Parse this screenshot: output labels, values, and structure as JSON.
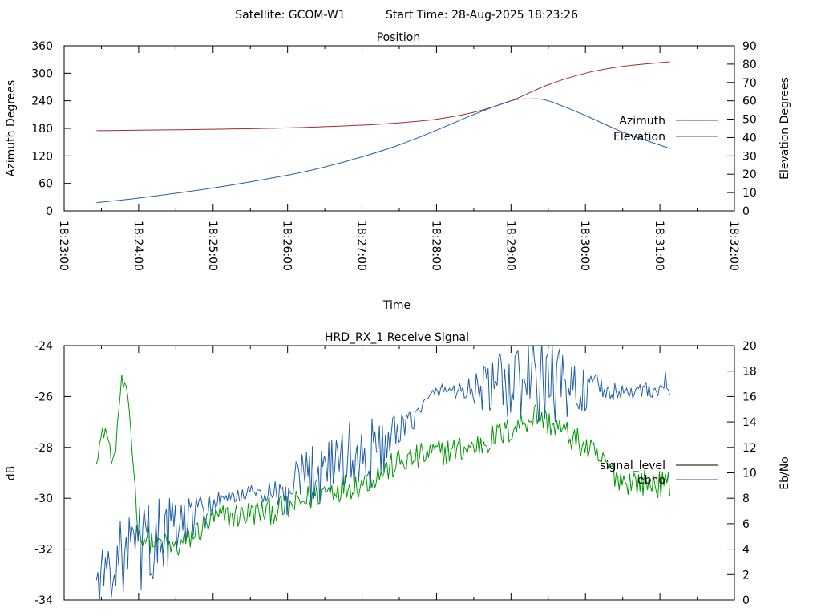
{
  "header": {
    "satellite_label": "Satellite: GCOM-W1",
    "start_label": "Start Time: 28-Aug-2025 18:23:26"
  },
  "colors": {
    "azimuth": "#a52a2a",
    "elevation": "#1f5fa6",
    "signal_level": "#009900",
    "ebno": "#1f5fa6",
    "axis": "#000000"
  },
  "chart_data": [
    {
      "type": "line",
      "title": "Position",
      "xlabel": "Time",
      "ylabel": "Azimuth Degrees",
      "y2label": "Elevation Degrees",
      "xlim": [
        "18:23:00",
        "18:32:00"
      ],
      "ylim": [
        0,
        360
      ],
      "y2lim": [
        0,
        90
      ],
      "x_ticks": [
        "18:23:00",
        "18:24:00",
        "18:25:00",
        "18:26:00",
        "18:27:00",
        "18:28:00",
        "18:29:00",
        "18:30:00",
        "18:31:00",
        "18:32:00"
      ],
      "y_ticks": [
        0,
        60,
        120,
        180,
        240,
        300,
        360
      ],
      "y2_ticks": [
        0,
        10,
        20,
        30,
        40,
        50,
        60,
        70,
        80,
        90
      ],
      "legend_position": "right",
      "series": [
        {
          "name": "Azimuth",
          "axis": "y",
          "x": [
            "18:23:26",
            "18:24:00",
            "18:25:00",
            "18:26:00",
            "18:27:00",
            "18:27:30",
            "18:28:00",
            "18:28:30",
            "18:29:00",
            "18:29:30",
            "18:30:00",
            "18:30:30",
            "18:31:08"
          ],
          "y": [
            175,
            176,
            178,
            181,
            187,
            192,
            200,
            215,
            240,
            275,
            300,
            315,
            325
          ]
        },
        {
          "name": "Elevation",
          "axis": "y2",
          "x": [
            "18:23:26",
            "18:24:00",
            "18:25:00",
            "18:26:00",
            "18:26:30",
            "18:27:00",
            "18:27:30",
            "18:28:00",
            "18:28:30",
            "18:29:00",
            "18:29:15",
            "18:29:30",
            "18:30:00",
            "18:30:30",
            "18:31:08"
          ],
          "y": [
            4.5,
            7,
            12.5,
            19.5,
            24,
            29.5,
            36,
            44,
            52.5,
            60,
            61,
            60,
            52,
            43,
            34
          ]
        }
      ]
    },
    {
      "type": "line",
      "title": "HRD_RX_1 Receive Signal",
      "ylabel": "dB",
      "y2label": "Eb/No",
      "xlim": [
        "18:23:00",
        "18:32:00"
      ],
      "ylim": [
        -34,
        -24
      ],
      "y2lim": [
        0,
        20
      ],
      "y_ticks": [
        -34,
        -32,
        -30,
        -28,
        -26,
        -24
      ],
      "y2_ticks": [
        0,
        2,
        4,
        6,
        8,
        10,
        12,
        14,
        16,
        18,
        20
      ],
      "legend_position": "right",
      "series": [
        {
          "name": "signal_level",
          "axis": "y",
          "x": [
            "18:23:26",
            "18:23:33",
            "18:23:40",
            "18:23:46",
            "18:23:52",
            "18:24:00",
            "18:24:30",
            "18:25:00",
            "18:25:30",
            "18:26:00",
            "18:26:30",
            "18:27:00",
            "18:27:30",
            "18:28:00",
            "18:28:30",
            "18:29:00",
            "18:29:20",
            "18:29:40",
            "18:30:00",
            "18:30:30",
            "18:31:08"
          ],
          "y": [
            -28.3,
            -27.2,
            -28.8,
            -25.4,
            -26.2,
            -31.5,
            -32.0,
            -30.8,
            -30.6,
            -30.4,
            -29.7,
            -29.4,
            -28.6,
            -28.2,
            -28.0,
            -27.3,
            -26.7,
            -27.3,
            -28.0,
            -29.3,
            -29.5
          ]
        },
        {
          "name": "ebno",
          "axis": "y2",
          "x": [
            "18:23:26",
            "18:23:40",
            "18:24:00",
            "18:24:30",
            "18:25:00",
            "18:25:30",
            "18:26:00",
            "18:26:30",
            "18:27:00",
            "18:27:30",
            "18:28:00",
            "18:28:30",
            "18:29:00",
            "18:29:30",
            "18:30:00",
            "18:30:30",
            "18:31:08"
          ],
          "y": [
            1.5,
            3.0,
            4.0,
            5.5,
            7.5,
            8.5,
            8.0,
            11.0,
            11.0,
            13.0,
            16.5,
            16.5,
            17.0,
            17.2,
            16.5,
            16.3,
            16.8
          ]
        }
      ]
    }
  ]
}
